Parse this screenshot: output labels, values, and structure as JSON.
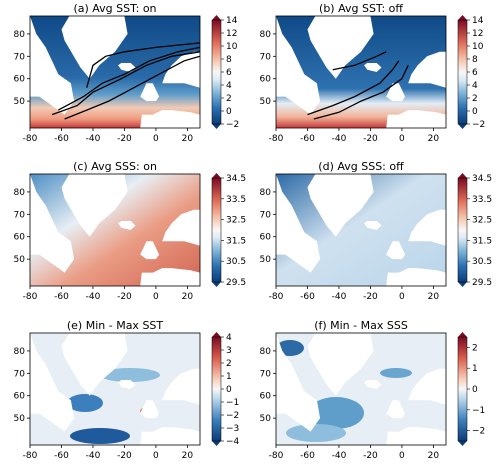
{
  "chart_data": [
    {
      "type": "heatmap",
      "title": "(a) Avg SST: on",
      "xlim": [
        -80,
        28
      ],
      "ylim": [
        38,
        88
      ],
      "x_ticks": [
        "-80",
        "-60",
        "-40",
        "-20",
        "0",
        "20"
      ],
      "y_ticks": [
        "50",
        "60",
        "70",
        "80"
      ],
      "colorbar": {
        "vmin": -2,
        "vmax": 14,
        "ticks": [
          "14",
          "12",
          "10",
          "8",
          "6",
          "4",
          "2",
          "0",
          "−2"
        ]
      },
      "contour_overlay": "black"
    },
    {
      "type": "heatmap",
      "title": "(b) Avg SST: off",
      "xlim": [
        -80,
        28
      ],
      "ylim": [
        38,
        88
      ],
      "x_ticks": [
        "-80",
        "-60",
        "-40",
        "-20",
        "0",
        "20"
      ],
      "y_ticks": [
        "50",
        "60",
        "70",
        "80"
      ],
      "colorbar": {
        "vmin": -2,
        "vmax": 14,
        "ticks": [
          "14",
          "12",
          "10",
          "8",
          "6",
          "4",
          "2",
          "0",
          "−2"
        ]
      },
      "contour_overlay": "black"
    },
    {
      "type": "heatmap",
      "title": "(c) Avg SSS: on",
      "xlim": [
        -80,
        28
      ],
      "ylim": [
        38,
        88
      ],
      "x_ticks": [
        "-80",
        "-60",
        "-40",
        "-20",
        "0",
        "20"
      ],
      "y_ticks": [
        "50",
        "60",
        "70",
        "80"
      ],
      "colorbar": {
        "vmin": 29.5,
        "vmax": 34.5,
        "ticks": [
          "34.5",
          "33.5",
          "32.5",
          "31.5",
          "30.5",
          "29.5"
        ]
      }
    },
    {
      "type": "heatmap",
      "title": "(d) Avg SSS: off",
      "xlim": [
        -80,
        28
      ],
      "ylim": [
        38,
        88
      ],
      "x_ticks": [
        "-80",
        "-60",
        "-40",
        "-20",
        "0",
        "20"
      ],
      "y_ticks": [
        "50",
        "60",
        "70",
        "80"
      ],
      "colorbar": {
        "vmin": 29.5,
        "vmax": 34.5,
        "ticks": [
          "34.5",
          "33.5",
          "32.5",
          "31.5",
          "30.5",
          "29.5"
        ]
      }
    },
    {
      "type": "heatmap",
      "title": "(e) Min - Max SST",
      "xlim": [
        -80,
        28
      ],
      "ylim": [
        38,
        88
      ],
      "x_ticks": [
        "-80",
        "-60",
        "-40",
        "-20",
        "0",
        "20"
      ],
      "y_ticks": [
        "50",
        "60",
        "70",
        "80"
      ],
      "colorbar": {
        "vmin": -4,
        "vmax": 4,
        "ticks": [
          "4",
          "3",
          "2",
          "1",
          "0",
          "−1",
          "−2",
          "−3",
          "−4"
        ]
      }
    },
    {
      "type": "heatmap",
      "title": "(f) Min - Max SSS",
      "xlim": [
        -80,
        28
      ],
      "ylim": [
        38,
        88
      ],
      "x_ticks": [
        "-80",
        "-60",
        "-40",
        "-20",
        "0",
        "20"
      ],
      "y_ticks": [
        "50",
        "60",
        "70",
        "80"
      ],
      "colorbar": {
        "vmin": -2.5,
        "vmax": 2.5,
        "ticks": [
          "2",
          "1",
          "0",
          "−1",
          "−2"
        ]
      }
    }
  ]
}
